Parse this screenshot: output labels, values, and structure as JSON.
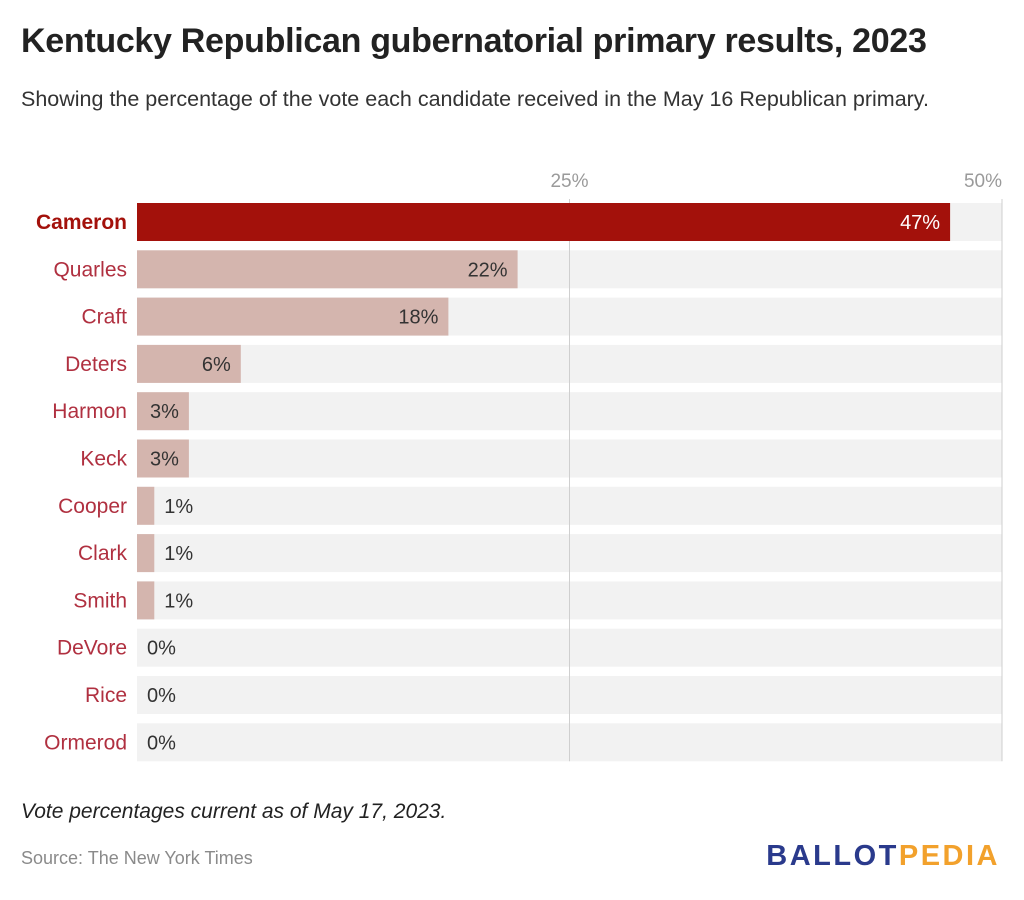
{
  "title": "Kentucky Republican gubernatorial primary results, 2023",
  "subtitle": "Showing the percentage of the vote each candidate received in the May 16 Republican primary.",
  "footnote": "Vote percentages current as of May 17, 2023.",
  "source": "Source: The New York Times",
  "logo": {
    "part1": "BALLOT",
    "part2": "PEDIA"
  },
  "colors": {
    "highlight_bar": "#a3110b",
    "bar": "#d4b5ae",
    "track": "#f2f2f2",
    "label_text": "#b03040",
    "highlight_label_text": "#a3110b",
    "gridline": "#cfcfcf",
    "tick_text": "#9a9a9a"
  },
  "chart_data": {
    "type": "bar",
    "orientation": "horizontal",
    "xlim": [
      0,
      50
    ],
    "ticks": [
      {
        "value": 25,
        "label": "25%"
      },
      {
        "value": 50,
        "label": "50%"
      }
    ],
    "categories": [
      "Cameron",
      "Quarles",
      "Craft",
      "Deters",
      "Harmon",
      "Keck",
      "Cooper",
      "Clark",
      "Smith",
      "DeVore",
      "Rice",
      "Ormerod"
    ],
    "values": [
      47,
      22,
      18,
      6,
      3,
      3,
      1,
      1,
      1,
      0,
      0,
      0
    ],
    "labels": [
      "47%",
      "22%",
      "18%",
      "6%",
      "3%",
      "3%",
      "1%",
      "1%",
      "1%",
      "0%",
      "0%",
      "0%"
    ],
    "highlight": "Cameron"
  }
}
